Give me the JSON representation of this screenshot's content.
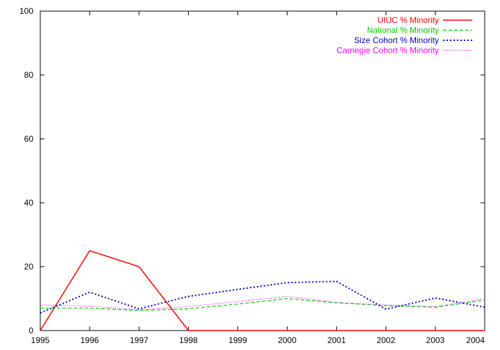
{
  "chart_data": {
    "type": "line",
    "title": "",
    "xlabel": "",
    "ylabel": "",
    "x": [
      1995,
      1996,
      1997,
      1998,
      1999,
      2000,
      2001,
      2002,
      2003,
      2004
    ],
    "xlim": [
      1995,
      2004
    ],
    "ylim": [
      0,
      100
    ],
    "x_ticks": [
      1995,
      1996,
      1997,
      1998,
      1999,
      2000,
      2001,
      2002,
      2003,
      2004
    ],
    "y_ticks": [
      0,
      20,
      40,
      60,
      80,
      100
    ],
    "grid": false,
    "legend_position": "top-right",
    "series": [
      {
        "name": "UIUC % Minority",
        "color": "#ff0000",
        "dash": "solid",
        "x": [
          1995,
          1996,
          1997,
          1998,
          1999,
          2000,
          2001,
          2002,
          2003,
          2004
        ],
        "values": [
          0,
          25,
          20,
          0,
          0,
          0,
          0,
          0,
          0,
          0
        ]
      },
      {
        "name": "National % Minority",
        "color": "#00cc00",
        "dash": "dashed",
        "x": [
          1995,
          1996,
          1997,
          1998,
          1999,
          2000,
          2001,
          2002,
          2003,
          2004
        ],
        "values": [
          7,
          7,
          6.3,
          6.8,
          8.3,
          10,
          8.7,
          7.8,
          7.3,
          9.5
        ]
      },
      {
        "name": "Size Cohort % Minority",
        "color": "#0000cc",
        "dash": "dotted",
        "x": [
          1995,
          1996,
          1997,
          1998,
          1999,
          2000,
          2001,
          2002,
          2003,
          2004
        ],
        "values": [
          5.5,
          12,
          6.8,
          10.7,
          12.9,
          15,
          15.4,
          6.7,
          10.2,
          7.3
        ]
      },
      {
        "name": "Carnegie Cohort % Minority",
        "color": "#ff00ff",
        "dash": "fine-dotted",
        "x": [
          1995,
          1996,
          1997,
          1998,
          1999,
          2000,
          2001,
          2002,
          2003,
          2004
        ],
        "values": [
          8,
          7.6,
          6.5,
          7.5,
          9.1,
          10.7,
          8.8,
          8,
          7.5,
          10
        ]
      }
    ]
  }
}
